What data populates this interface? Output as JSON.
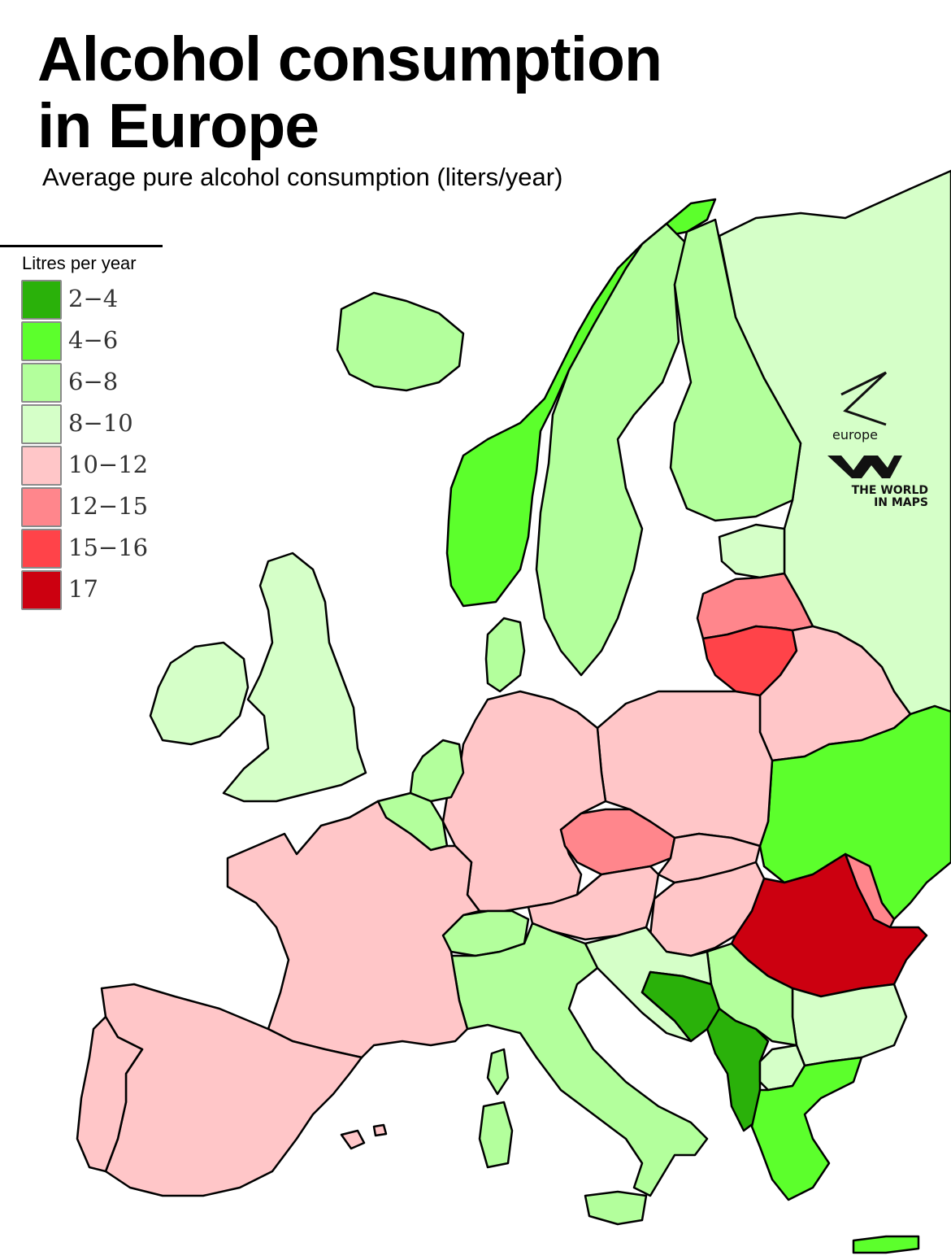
{
  "title": "Alcohol consumption\nin Europe",
  "subtitle": "Average pure alcohol consumption (liters/year)",
  "legend": {
    "title": "Litres per year",
    "items": [
      {
        "label": "2−4",
        "color": "#2ab10a"
      },
      {
        "label": "4−6",
        "color": "#5cff2c"
      },
      {
        "label": "6−8",
        "color": "#b3ff9c"
      },
      {
        "label": "8−10",
        "color": "#d5ffc8"
      },
      {
        "label": "10−12",
        "color": "#ffc6c8"
      },
      {
        "label": "12−15",
        "color": "#ff868c"
      },
      {
        "label": "15−16",
        "color": "#ff4349"
      },
      {
        "label": "17",
        "color": "#cc0010"
      }
    ]
  },
  "branding": {
    "europe_logo": "europe",
    "wim_logo": "THE WORLD\nIN MAPS"
  },
  "colors": {
    "land_border": "#000000",
    "sea": "#ffffff"
  }
}
